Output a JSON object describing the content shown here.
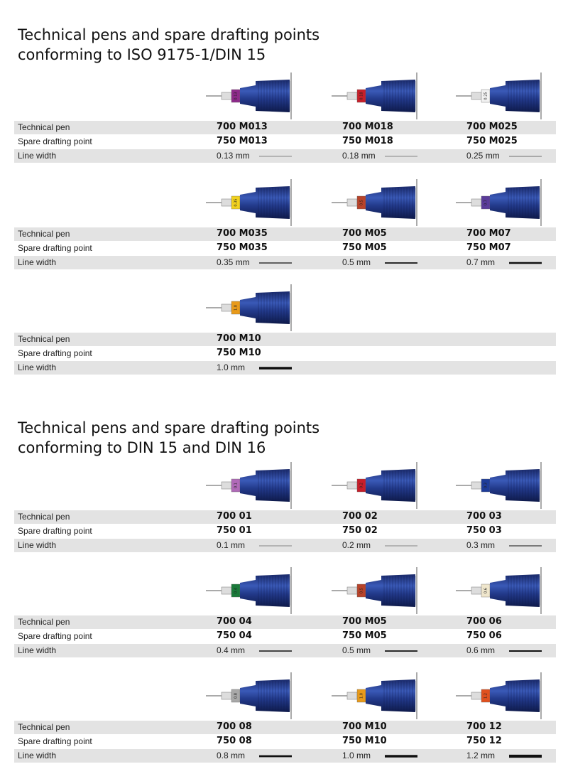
{
  "row_labels": [
    "Technical pen",
    "Spare drafting point",
    "Line width"
  ],
  "sections": [
    {
      "title_lines": [
        "Technical pens and spare drafting points",
        "conforming to ISO 9175-1/DIN 15"
      ],
      "groups": [
        {
          "pens": [
            {
              "technical_pen": "700 M013",
              "spare_point": "750 M013",
              "line_width": "0.13 mm",
              "ring_label": "0.13",
              "ring_color": "#8e2a8a"
            },
            {
              "technical_pen": "700 M018",
              "spare_point": "750 M018",
              "line_width": "0.18 mm",
              "ring_label": "0.18",
              "ring_color": "#c8202a"
            },
            {
              "technical_pen": "700 M025",
              "spare_point": "750 M025",
              "line_width": "0.25 mm",
              "ring_label": "0.25",
              "ring_color": "#f2f2f2"
            }
          ]
        },
        {
          "pens": [
            {
              "technical_pen": "700 M035",
              "spare_point": "750 M035",
              "line_width": "0.35 mm",
              "ring_label": "0.35",
              "ring_color": "#f2d21e"
            },
            {
              "technical_pen": "700 M05",
              "spare_point": "750 M05",
              "line_width": "0.5 mm",
              "ring_label": "0.5",
              "ring_color": "#b8432a"
            },
            {
              "technical_pen": "700 M07",
              "spare_point": "750 M07",
              "line_width": "0.7 mm",
              "ring_label": "0.7",
              "ring_color": "#5b3c9a"
            }
          ]
        },
        {
          "pens": [
            {
              "technical_pen": "700 M10",
              "spare_point": "750 M10",
              "line_width": "1.0 mm",
              "ring_label": "1.0",
              "ring_color": "#e89a1a"
            }
          ]
        }
      ]
    },
    {
      "title_lines": [
        "Technical pens and spare drafting points",
        "conforming to DIN 15 and DIN 16"
      ],
      "groups": [
        {
          "pens": [
            {
              "technical_pen": "700 01",
              "spare_point": "750 01",
              "line_width": "0.1 mm",
              "ring_label": "0.1",
              "ring_color": "#b06ab8"
            },
            {
              "technical_pen": "700 02",
              "spare_point": "750 02",
              "line_width": "0.2 mm",
              "ring_label": "0.2",
              "ring_color": "#c81e2a"
            },
            {
              "technical_pen": "700 03",
              "spare_point": "750 03",
              "line_width": "0.3 mm",
              "ring_label": "0.3",
              "ring_color": "#1e3c9a"
            }
          ]
        },
        {
          "pens": [
            {
              "technical_pen": "700 04",
              "spare_point": "750 04",
              "line_width": "0.4 mm",
              "ring_label": "0.4",
              "ring_color": "#1a7a3a"
            },
            {
              "technical_pen": "700 M05",
              "spare_point": "750 M05",
              "line_width": "0.5 mm",
              "ring_label": "0.5",
              "ring_color": "#b8432a"
            },
            {
              "technical_pen": "700 06",
              "spare_point": "750 06",
              "line_width": "0.6 mm",
              "ring_label": "0.6",
              "ring_color": "#efe6cc"
            }
          ]
        },
        {
          "pens": [
            {
              "technical_pen": "700 08",
              "spare_point": "750 08",
              "line_width": "0.8 mm",
              "ring_label": "0.8",
              "ring_color": "#a8a8a8"
            },
            {
              "technical_pen": "700 M10",
              "spare_point": "750 M10",
              "line_width": "1.0 mm",
              "ring_label": "1.0",
              "ring_color": "#e89a1a"
            },
            {
              "technical_pen": "700 12",
              "spare_point": "750 12",
              "line_width": "1.2 mm",
              "ring_label": "1.2",
              "ring_color": "#e0501e"
            }
          ]
        }
      ]
    }
  ]
}
